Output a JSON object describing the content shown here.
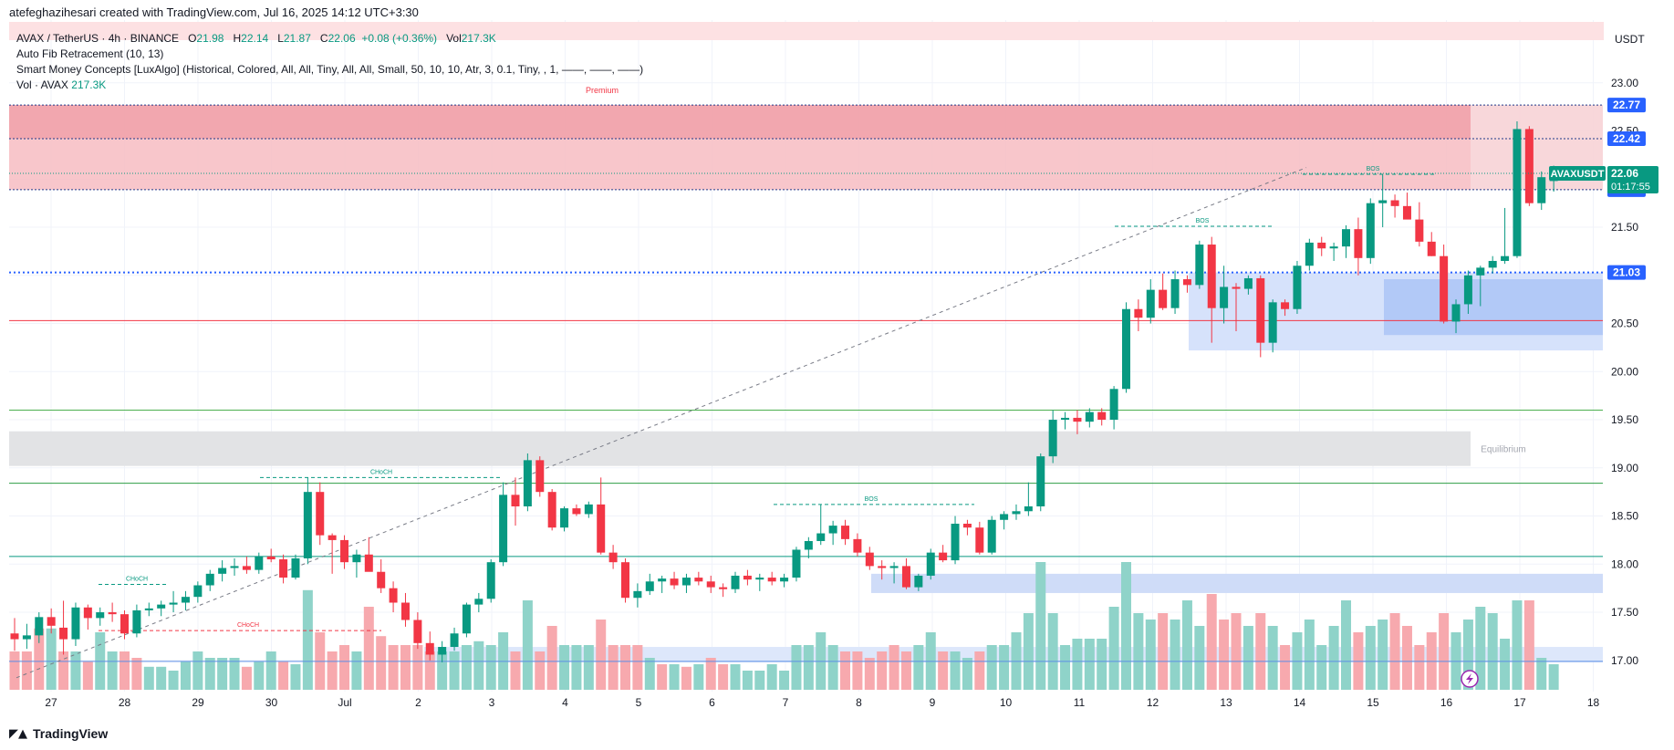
{
  "header": {
    "credit": "atefeghazihesari created with TradingView.com, Jul 16, 2025 14:12 UTC+3:30"
  },
  "legend": {
    "symbol": "AVAX / TetherUS · 4h · BINANCE",
    "o_label": "O",
    "o": "21.98",
    "h_label": "H",
    "h": "22.14",
    "l_label": "L",
    "l": "21.87",
    "c_label": "C",
    "c": "22.06",
    "change": "+0.08 (+0.36%)",
    "vol_label": "Vol",
    "vol": "217.3K",
    "ind1": "Auto Fib Retracement (10, 13)",
    "ind2": "Smart Money Concepts [LuxAlgo] (Historical, Colored, All, All, Tiny, All, All, Small, 50, 10, 10, Atr, 3, 0.1, Tiny, , 1, ——, ——, ——)",
    "ind3_label": "Vol · AVAX",
    "ind3_value": "217.3K"
  },
  "currency": "USDT",
  "footer": {
    "brand": "TradingView",
    "logo_icon": "tradingview-logo-icon"
  },
  "colors": {
    "up": "#089981",
    "down": "#f23645",
    "up_vol": "#8fd3c9",
    "down_vol": "#f7a9ae"
  },
  "chart_data": {
    "type": "candlestick",
    "symbol": "AVAX / TetherUS",
    "interval": "4h",
    "exchange": "BINANCE",
    "x_ticks": [
      "27",
      "28",
      "29",
      "30",
      "Jul",
      "2",
      "3",
      "4",
      "5",
      "6",
      "7",
      "8",
      "9",
      "10",
      "11",
      "12",
      "13",
      "14",
      "15",
      "16",
      "17",
      "18"
    ],
    "y_ticks": [
      "23.00",
      "22.50",
      "22.00",
      "21.50",
      "21.00",
      "20.50",
      "20.00",
      "19.50",
      "19.00",
      "18.50",
      "18.00",
      "17.50",
      "17.00"
    ],
    "ylim": [
      16.72,
      23.3
    ],
    "candles": [
      [
        17.28,
        17.44,
        17.1,
        17.22
      ],
      [
        17.22,
        17.38,
        17.12,
        17.26
      ],
      [
        17.26,
        17.5,
        17.18,
        17.45
      ],
      [
        17.45,
        17.54,
        17.28,
        17.36
      ],
      [
        17.34,
        17.62,
        17.06,
        17.22
      ],
      [
        17.22,
        17.6,
        17.15,
        17.55
      ],
      [
        17.55,
        17.58,
        17.32,
        17.44
      ],
      [
        17.44,
        17.55,
        17.36,
        17.5
      ],
      [
        17.5,
        17.6,
        17.4,
        17.48
      ],
      [
        17.48,
        17.52,
        17.22,
        17.28
      ],
      [
        17.28,
        17.58,
        17.24,
        17.52
      ],
      [
        17.52,
        17.6,
        17.46,
        17.54
      ],
      [
        17.54,
        17.62,
        17.46,
        17.58
      ],
      [
        17.58,
        17.72,
        17.5,
        17.6
      ],
      [
        17.6,
        17.72,
        17.52,
        17.66
      ],
      [
        17.66,
        17.82,
        17.6,
        17.78
      ],
      [
        17.78,
        17.94,
        17.72,
        17.9
      ],
      [
        17.9,
        18.04,
        17.82,
        17.96
      ],
      [
        17.96,
        18.06,
        17.88,
        17.98
      ],
      [
        17.98,
        18.08,
        17.9,
        17.94
      ],
      [
        17.94,
        18.12,
        17.9,
        18.08
      ],
      [
        18.08,
        18.16,
        18.02,
        18.05
      ],
      [
        18.05,
        18.1,
        17.8,
        17.86
      ],
      [
        17.86,
        18.1,
        17.84,
        18.06
      ],
      [
        18.06,
        18.9,
        18.0,
        18.75
      ],
      [
        18.75,
        18.85,
        18.2,
        18.3
      ],
      [
        18.3,
        18.32,
        17.9,
        18.25
      ],
      [
        18.25,
        18.3,
        17.95,
        18.02
      ],
      [
        18.02,
        18.15,
        17.86,
        18.1
      ],
      [
        18.1,
        18.28,
        17.95,
        17.92
      ],
      [
        17.92,
        18.05,
        17.7,
        17.75
      ],
      [
        17.75,
        17.82,
        17.5,
        17.6
      ],
      [
        17.6,
        17.7,
        17.35,
        17.42
      ],
      [
        17.42,
        17.5,
        17.12,
        17.18
      ],
      [
        17.18,
        17.3,
        17.0,
        17.06
      ],
      [
        17.06,
        17.2,
        16.98,
        17.14
      ],
      [
        17.14,
        17.34,
        17.1,
        17.28
      ],
      [
        17.28,
        17.6,
        17.24,
        17.58
      ],
      [
        17.58,
        17.7,
        17.5,
        17.64
      ],
      [
        17.64,
        18.05,
        17.6,
        18.02
      ],
      [
        18.02,
        18.85,
        17.98,
        18.72
      ],
      [
        18.72,
        18.9,
        18.4,
        18.6
      ],
      [
        18.6,
        19.15,
        18.55,
        19.08
      ],
      [
        19.08,
        19.12,
        18.7,
        18.75
      ],
      [
        18.75,
        18.78,
        18.35,
        18.38
      ],
      [
        18.38,
        18.6,
        18.34,
        18.58
      ],
      [
        18.58,
        18.62,
        18.5,
        18.52
      ],
      [
        18.52,
        18.65,
        18.48,
        18.62
      ],
      [
        18.62,
        18.9,
        18.1,
        18.12
      ],
      [
        18.12,
        18.2,
        17.95,
        18.02
      ],
      [
        18.02,
        18.06,
        17.6,
        17.65
      ],
      [
        17.65,
        17.8,
        17.55,
        17.72
      ],
      [
        17.72,
        17.9,
        17.68,
        17.82
      ],
      [
        17.82,
        17.88,
        17.7,
        17.85
      ],
      [
        17.85,
        17.92,
        17.74,
        17.78
      ],
      [
        17.78,
        17.9,
        17.7,
        17.86
      ],
      [
        17.86,
        17.92,
        17.78,
        17.82
      ],
      [
        17.82,
        17.88,
        17.7,
        17.76
      ],
      [
        17.76,
        17.8,
        17.66,
        17.74
      ],
      [
        17.74,
        17.92,
        17.7,
        17.88
      ],
      [
        17.88,
        17.94,
        17.78,
        17.84
      ],
      [
        17.84,
        17.9,
        17.72,
        17.86
      ],
      [
        17.86,
        17.92,
        17.78,
        17.82
      ],
      [
        17.82,
        17.9,
        17.76,
        17.86
      ],
      [
        17.86,
        18.18,
        17.82,
        18.15
      ],
      [
        18.15,
        18.28,
        18.06,
        18.24
      ],
      [
        18.24,
        18.62,
        18.2,
        18.32
      ],
      [
        18.32,
        18.45,
        18.2,
        18.4
      ],
      [
        18.4,
        18.46,
        18.2,
        18.26
      ],
      [
        18.26,
        18.32,
        18.08,
        18.12
      ],
      [
        18.12,
        18.18,
        17.94,
        17.98
      ],
      [
        17.98,
        18.04,
        17.84,
        17.96
      ],
      [
        17.96,
        18.02,
        17.8,
        17.98
      ],
      [
        17.98,
        18.06,
        17.74,
        17.76
      ],
      [
        17.76,
        17.9,
        17.72,
        17.88
      ],
      [
        17.88,
        18.16,
        17.84,
        18.12
      ],
      [
        18.12,
        18.2,
        18.02,
        18.04
      ],
      [
        18.04,
        18.5,
        18.0,
        18.42
      ],
      [
        18.42,
        18.46,
        18.3,
        18.38
      ],
      [
        18.38,
        18.44,
        18.1,
        18.12
      ],
      [
        18.12,
        18.5,
        18.1,
        18.46
      ],
      [
        18.46,
        18.55,
        18.36,
        18.52
      ],
      [
        18.52,
        18.62,
        18.46,
        18.55
      ],
      [
        18.55,
        18.85,
        18.5,
        18.6
      ],
      [
        18.6,
        19.15,
        18.55,
        19.12
      ],
      [
        19.12,
        19.6,
        19.05,
        19.5
      ],
      [
        19.5,
        19.58,
        19.4,
        19.52
      ],
      [
        19.52,
        19.6,
        19.35,
        19.48
      ],
      [
        19.48,
        19.62,
        19.42,
        19.58
      ],
      [
        19.58,
        19.62,
        19.44,
        19.5
      ],
      [
        19.5,
        19.85,
        19.4,
        19.82
      ],
      [
        19.82,
        20.72,
        19.78,
        20.65
      ],
      [
        20.65,
        20.75,
        20.42,
        20.56
      ],
      [
        20.56,
        20.96,
        20.5,
        20.85
      ],
      [
        20.85,
        21.02,
        20.64,
        20.66
      ],
      [
        20.66,
        21.05,
        20.6,
        20.96
      ],
      [
        20.96,
        21.0,
        20.82,
        20.9
      ],
      [
        20.9,
        21.36,
        20.86,
        21.32
      ],
      [
        21.32,
        21.4,
        20.3,
        20.66
      ],
      [
        20.66,
        21.1,
        20.5,
        20.88
      ],
      [
        20.88,
        20.92,
        20.42,
        20.86
      ],
      [
        20.86,
        21.0,
        20.8,
        20.97
      ],
      [
        20.97,
        21.0,
        20.15,
        20.3
      ],
      [
        20.3,
        20.75,
        20.2,
        20.72
      ],
      [
        20.72,
        20.75,
        20.58,
        20.65
      ],
      [
        20.65,
        21.15,
        20.6,
        21.1
      ],
      [
        21.1,
        21.38,
        21.05,
        21.34
      ],
      [
        21.34,
        21.4,
        21.2,
        21.28
      ],
      [
        21.28,
        21.34,
        21.15,
        21.3
      ],
      [
        21.3,
        21.52,
        21.18,
        21.48
      ],
      [
        21.48,
        21.6,
        21.0,
        21.18
      ],
      [
        21.18,
        21.8,
        21.12,
        21.75
      ],
      [
        21.75,
        22.05,
        21.5,
        21.78
      ],
      [
        21.78,
        21.84,
        21.6,
        21.72
      ],
      [
        21.72,
        21.86,
        21.6,
        21.58
      ],
      [
        21.58,
        21.76,
        21.3,
        21.35
      ],
      [
        21.35,
        21.45,
        21.2,
        21.2
      ],
      [
        21.2,
        21.32,
        20.5,
        20.52
      ],
      [
        20.52,
        20.75,
        20.4,
        20.7
      ],
      [
        20.7,
        21.05,
        20.6,
        21.0
      ],
      [
        21.0,
        21.1,
        20.68,
        21.08
      ],
      [
        21.08,
        21.2,
        21.02,
        21.15
      ],
      [
        21.15,
        21.7,
        21.12,
        21.2
      ],
      [
        21.2,
        22.6,
        21.18,
        22.52
      ],
      [
        22.52,
        22.55,
        21.72,
        21.75
      ],
      [
        21.75,
        22.08,
        21.68,
        22.02
      ],
      [
        21.98,
        22.14,
        21.87,
        22.06
      ]
    ],
    "volume": [
      [
        0.3,
        "d"
      ],
      [
        0.3,
        "d"
      ],
      [
        0.48,
        "d"
      ],
      [
        0.48,
        "u"
      ],
      [
        0.3,
        "d"
      ],
      [
        0.3,
        "u"
      ],
      [
        0.22,
        "d"
      ],
      [
        0.45,
        "u"
      ],
      [
        0.3,
        "u"
      ],
      [
        0.3,
        "d"
      ],
      [
        0.25,
        "d"
      ],
      [
        0.18,
        "u"
      ],
      [
        0.18,
        "u"
      ],
      [
        0.15,
        "u"
      ],
      [
        0.22,
        "u"
      ],
      [
        0.3,
        "u"
      ],
      [
        0.25,
        "u"
      ],
      [
        0.25,
        "u"
      ],
      [
        0.25,
        "u"
      ],
      [
        0.18,
        "d"
      ],
      [
        0.22,
        "u"
      ],
      [
        0.3,
        "u"
      ],
      [
        0.22,
        "d"
      ],
      [
        0.2,
        "u"
      ],
      [
        0.78,
        "u"
      ],
      [
        0.45,
        "d"
      ],
      [
        0.3,
        "d"
      ],
      [
        0.35,
        "d"
      ],
      [
        0.3,
        "u"
      ],
      [
        0.65,
        "d"
      ],
      [
        0.42,
        "d"
      ],
      [
        0.35,
        "d"
      ],
      [
        0.35,
        "d"
      ],
      [
        0.35,
        "d"
      ],
      [
        0.3,
        "d"
      ],
      [
        0.3,
        "u"
      ],
      [
        0.3,
        "u"
      ],
      [
        0.35,
        "u"
      ],
      [
        0.38,
        "u"
      ],
      [
        0.35,
        "u"
      ],
      [
        0.45,
        "u"
      ],
      [
        0.3,
        "d"
      ],
      [
        0.7,
        "u"
      ],
      [
        0.3,
        "d"
      ],
      [
        0.5,
        "d"
      ],
      [
        0.35,
        "u"
      ],
      [
        0.35,
        "u"
      ],
      [
        0.35,
        "u"
      ],
      [
        0.55,
        "d"
      ],
      [
        0.35,
        "d"
      ],
      [
        0.35,
        "d"
      ],
      [
        0.35,
        "d"
      ],
      [
        0.25,
        "u"
      ],
      [
        0.2,
        "d"
      ],
      [
        0.2,
        "u"
      ],
      [
        0.18,
        "d"
      ],
      [
        0.2,
        "u"
      ],
      [
        0.25,
        "d"
      ],
      [
        0.2,
        "d"
      ],
      [
        0.2,
        "u"
      ],
      [
        0.15,
        "u"
      ],
      [
        0.15,
        "u"
      ],
      [
        0.2,
        "u"
      ],
      [
        0.15,
        "u"
      ],
      [
        0.35,
        "u"
      ],
      [
        0.35,
        "u"
      ],
      [
        0.45,
        "u"
      ],
      [
        0.35,
        "u"
      ],
      [
        0.3,
        "d"
      ],
      [
        0.3,
        "d"
      ],
      [
        0.25,
        "d"
      ],
      [
        0.3,
        "d"
      ],
      [
        0.35,
        "d"
      ],
      [
        0.3,
        "d"
      ],
      [
        0.35,
        "u"
      ],
      [
        0.45,
        "u"
      ],
      [
        0.3,
        "d"
      ],
      [
        0.3,
        "u"
      ],
      [
        0.25,
        "u"
      ],
      [
        0.3,
        "d"
      ],
      [
        0.35,
        "u"
      ],
      [
        0.35,
        "u"
      ],
      [
        0.45,
        "u"
      ],
      [
        0.6,
        "u"
      ],
      [
        1.0,
        "u"
      ],
      [
        0.6,
        "u"
      ],
      [
        0.35,
        "u"
      ],
      [
        0.4,
        "u"
      ],
      [
        0.4,
        "u"
      ],
      [
        0.4,
        "u"
      ],
      [
        0.65,
        "u"
      ],
      [
        1.0,
        "u"
      ],
      [
        0.6,
        "u"
      ],
      [
        0.55,
        "u"
      ],
      [
        0.6,
        "d"
      ],
      [
        0.55,
        "u"
      ],
      [
        0.7,
        "u"
      ],
      [
        0.5,
        "u"
      ],
      [
        0.75,
        "d"
      ],
      [
        0.55,
        "d"
      ],
      [
        0.6,
        "d"
      ],
      [
        0.5,
        "u"
      ],
      [
        0.6,
        "d"
      ],
      [
        0.5,
        "u"
      ],
      [
        0.35,
        "d"
      ],
      [
        0.45,
        "u"
      ],
      [
        0.55,
        "u"
      ],
      [
        0.35,
        "u"
      ],
      [
        0.5,
        "u"
      ],
      [
        0.7,
        "u"
      ],
      [
        0.45,
        "d"
      ],
      [
        0.5,
        "u"
      ],
      [
        0.55,
        "u"
      ],
      [
        0.6,
        "d"
      ],
      [
        0.5,
        "d"
      ],
      [
        0.35,
        "d"
      ],
      [
        0.45,
        "d"
      ],
      [
        0.6,
        "d"
      ],
      [
        0.45,
        "u"
      ],
      [
        0.55,
        "u"
      ],
      [
        0.65,
        "u"
      ],
      [
        0.6,
        "u"
      ],
      [
        0.4,
        "u"
      ],
      [
        0.7,
        "u"
      ],
      [
        0.7,
        "d"
      ],
      [
        0.25,
        "u"
      ],
      [
        0.2,
        "u"
      ]
    ],
    "levels": [
      {
        "value": "22.77",
        "style": "dotted-navy"
      },
      {
        "value": "22.42",
        "style": "dotted-navy"
      },
      {
        "value": "21.89",
        "style": "dotted-navy"
      },
      {
        "value": "21.03",
        "style": "dotted-blue"
      },
      {
        "value": 20.53,
        "style": "solid-red"
      },
      {
        "value": 19.6,
        "style": "solid-green-light"
      },
      {
        "value": 18.84,
        "style": "solid-green"
      },
      {
        "value": 18.08,
        "style": "solid-teal"
      },
      {
        "value": 16.99,
        "style": "solid-blue"
      }
    ],
    "current_price": {
      "symbol": "AVAXUSDT",
      "price": "22.06",
      "countdown": "01:17:55"
    },
    "zones": [
      {
        "label": "Premium",
        "from": 21.89,
        "to": 22.77
      },
      {
        "label": "Equilibrium",
        "from": 19.02,
        "to": 19.38
      },
      {
        "label": "",
        "from": 20.22,
        "to": 21.03
      },
      {
        "label": "",
        "from": 17.7,
        "to": 17.9
      },
      {
        "label": "",
        "from": 16.98,
        "to": 17.14
      }
    ],
    "annotations": [
      {
        "text": "CHoCH",
        "value": 17.79
      },
      {
        "text": "CHoCH",
        "value": 17.31
      },
      {
        "text": "CHoCH",
        "value": 18.9
      },
      {
        "text": "BOS",
        "value": 18.62
      },
      {
        "text": "BOS",
        "value": 21.51
      },
      {
        "text": "BOS",
        "value": 22.05
      }
    ]
  }
}
